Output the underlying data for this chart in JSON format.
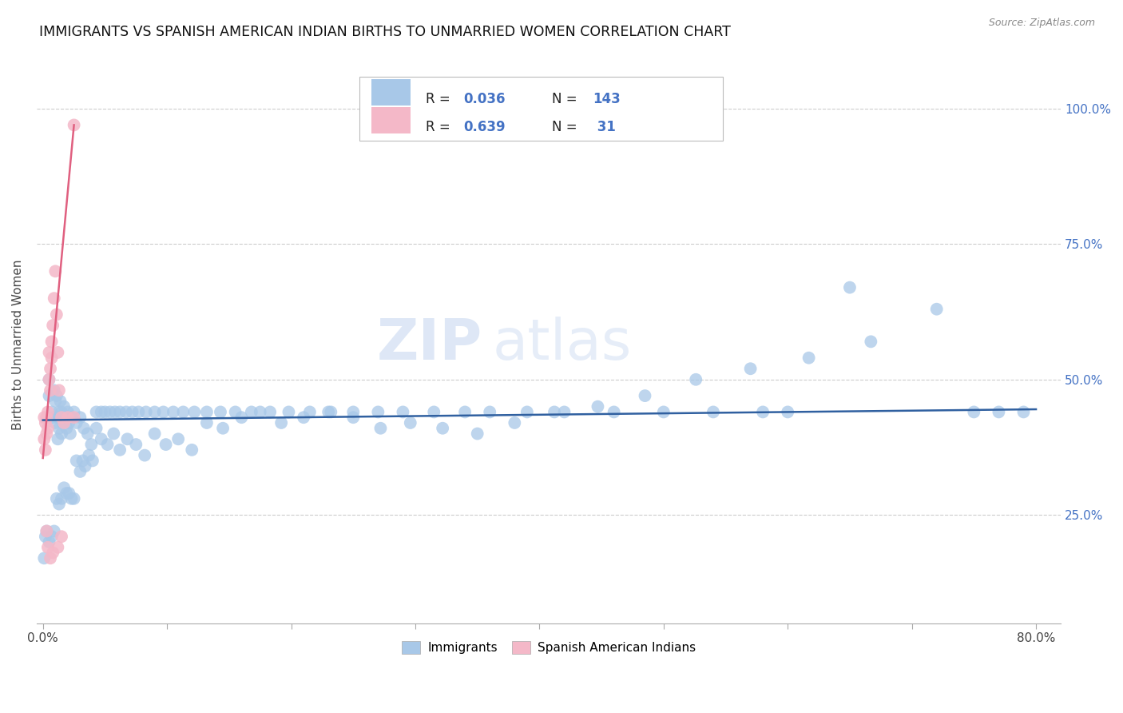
{
  "title": "IMMIGRANTS VS SPANISH AMERICAN INDIAN BIRTHS TO UNMARRIED WOMEN CORRELATION CHART",
  "source": "Source: ZipAtlas.com",
  "ylabel": "Births to Unmarried Women",
  "ytick_labels": [
    "25.0%",
    "50.0%",
    "75.0%",
    "100.0%"
  ],
  "ytick_values": [
    0.25,
    0.5,
    0.75,
    1.0
  ],
  "xlim": [
    -0.005,
    0.82
  ],
  "ylim": [
    0.05,
    1.08
  ],
  "blue_color": "#a8c8e8",
  "pink_color": "#f4b8c8",
  "line_blue": "#3060a0",
  "line_pink": "#e06080",
  "watermark_zip": "ZIP",
  "watermark_atlas": "atlas",
  "blue_x": [
    0.005,
    0.005,
    0.007,
    0.008,
    0.009,
    0.01,
    0.01,
    0.011,
    0.012,
    0.012,
    0.013,
    0.013,
    0.014,
    0.014,
    0.015,
    0.015,
    0.016,
    0.017,
    0.018,
    0.019,
    0.02,
    0.021,
    0.022,
    0.023,
    0.025,
    0.027,
    0.03,
    0.033,
    0.036,
    0.039,
    0.043,
    0.047,
    0.052,
    0.057,
    0.062,
    0.068,
    0.075,
    0.082,
    0.09,
    0.099,
    0.109,
    0.12,
    0.132,
    0.145,
    0.16,
    0.175,
    0.192,
    0.21,
    0.23,
    0.25,
    0.272,
    0.296,
    0.322,
    0.35,
    0.38,
    0.412,
    0.447,
    0.485,
    0.526,
    0.57,
    0.617,
    0.667,
    0.72,
    0.6,
    0.65,
    0.54,
    0.58,
    0.5,
    0.46,
    0.42,
    0.39,
    0.36,
    0.34,
    0.315,
    0.29,
    0.27,
    0.25,
    0.232,
    0.215,
    0.198,
    0.183,
    0.168,
    0.155,
    0.143,
    0.132,
    0.122,
    0.113,
    0.105,
    0.097,
    0.09,
    0.083,
    0.077,
    0.072,
    0.067,
    0.062,
    0.058,
    0.054,
    0.05,
    0.047,
    0.043,
    0.04,
    0.037,
    0.034,
    0.032,
    0.03,
    0.027,
    0.025,
    0.023,
    0.021,
    0.019,
    0.017,
    0.015,
    0.013,
    0.011,
    0.009,
    0.007,
    0.005,
    0.003,
    0.002,
    0.001,
    0.75,
    0.77,
    0.79
  ],
  "blue_y": [
    0.47,
    0.5,
    0.44,
    0.43,
    0.48,
    0.46,
    0.42,
    0.47,
    0.43,
    0.39,
    0.44,
    0.41,
    0.46,
    0.43,
    0.44,
    0.4,
    0.42,
    0.45,
    0.43,
    0.41,
    0.44,
    0.42,
    0.4,
    0.43,
    0.44,
    0.42,
    0.43,
    0.41,
    0.4,
    0.38,
    0.41,
    0.39,
    0.38,
    0.4,
    0.37,
    0.39,
    0.38,
    0.36,
    0.4,
    0.38,
    0.39,
    0.37,
    0.42,
    0.41,
    0.43,
    0.44,
    0.42,
    0.43,
    0.44,
    0.43,
    0.41,
    0.42,
    0.41,
    0.4,
    0.42,
    0.44,
    0.45,
    0.47,
    0.5,
    0.52,
    0.54,
    0.57,
    0.63,
    0.44,
    0.67,
    0.44,
    0.44,
    0.44,
    0.44,
    0.44,
    0.44,
    0.44,
    0.44,
    0.44,
    0.44,
    0.44,
    0.44,
    0.44,
    0.44,
    0.44,
    0.44,
    0.44,
    0.44,
    0.44,
    0.44,
    0.44,
    0.44,
    0.44,
    0.44,
    0.44,
    0.44,
    0.44,
    0.44,
    0.44,
    0.44,
    0.44,
    0.44,
    0.44,
    0.44,
    0.44,
    0.35,
    0.36,
    0.34,
    0.35,
    0.33,
    0.35,
    0.28,
    0.28,
    0.29,
    0.29,
    0.3,
    0.28,
    0.27,
    0.28,
    0.22,
    0.21,
    0.2,
    0.22,
    0.21,
    0.17,
    0.44,
    0.44,
    0.44
  ],
  "pink_x": [
    0.001,
    0.001,
    0.002,
    0.002,
    0.003,
    0.003,
    0.004,
    0.004,
    0.005,
    0.005,
    0.006,
    0.006,
    0.007,
    0.007,
    0.008,
    0.009,
    0.01,
    0.011,
    0.012,
    0.013,
    0.015,
    0.017,
    0.02,
    0.025,
    0.015,
    0.012,
    0.008,
    0.006,
    0.004,
    0.003,
    0.025
  ],
  "pink_y": [
    0.43,
    0.39,
    0.42,
    0.37,
    0.43,
    0.4,
    0.44,
    0.41,
    0.55,
    0.5,
    0.52,
    0.48,
    0.57,
    0.54,
    0.6,
    0.65,
    0.7,
    0.62,
    0.55,
    0.48,
    0.43,
    0.42,
    0.43,
    0.43,
    0.21,
    0.19,
    0.18,
    0.17,
    0.19,
    0.22,
    0.97
  ],
  "pink_line_x0": 0.0,
  "pink_line_y0": 0.355,
  "pink_line_x1": 0.025,
  "pink_line_y1": 0.97,
  "blue_line_x0": 0.0,
  "blue_line_y0": 0.425,
  "blue_line_x1": 0.8,
  "blue_line_y1": 0.445
}
